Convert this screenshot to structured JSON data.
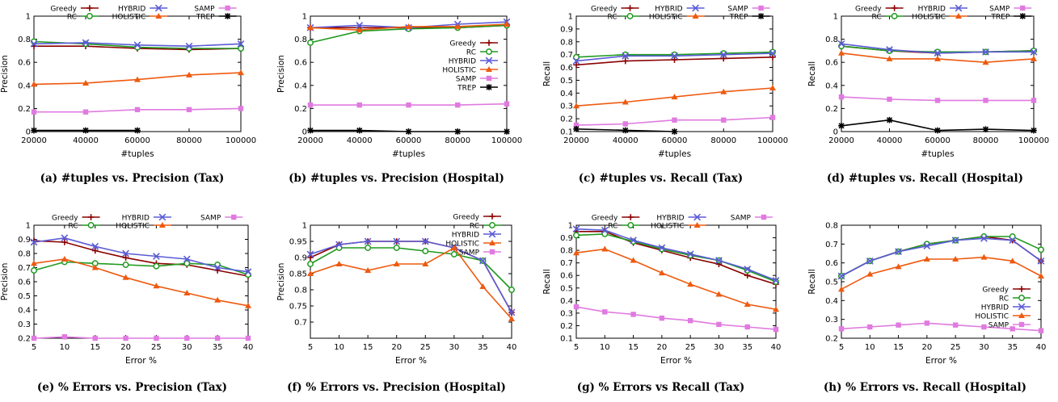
{
  "styles": {
    "Greedy": {
      "color": "#8b0000",
      "marker": "plus"
    },
    "RC": {
      "color": "#1f9a1f",
      "marker": "circle"
    },
    "HYBRID": {
      "color": "#5b5bd6",
      "marker": "x"
    },
    "HOLISTIC": {
      "color": "#ee5a0f",
      "marker": "triangle"
    },
    "SAMP": {
      "color": "#e07ae0",
      "marker": "square"
    },
    "TREP": {
      "color": "#000000",
      "marker": "star"
    }
  },
  "chart_data": [
    {
      "type": "line",
      "caption": "(a) #tuples vs. Precision (Tax)",
      "xlabel": "#tuples",
      "ylabel": "Precision",
      "xlim": [
        20000,
        100000
      ],
      "ylim": [
        0,
        1
      ],
      "xticks": [
        20000,
        40000,
        60000,
        80000,
        100000
      ],
      "yticks": [
        "0",
        "0.2",
        "0.4",
        "0.6",
        "0.8",
        "1"
      ],
      "legend": "top-inside-two-rows",
      "series": [
        {
          "name": "Greedy",
          "x": [
            20000,
            40000,
            60000,
            80000,
            100000
          ],
          "y": [
            0.74,
            0.74,
            0.72,
            0.71,
            0.72
          ]
        },
        {
          "name": "RC",
          "x": [
            20000,
            40000,
            60000,
            80000,
            100000
          ],
          "y": [
            0.78,
            0.76,
            0.73,
            0.72,
            0.72
          ]
        },
        {
          "name": "HYBRID",
          "x": [
            20000,
            40000,
            60000,
            80000,
            100000
          ],
          "y": [
            0.76,
            0.77,
            0.75,
            0.74,
            0.76
          ]
        },
        {
          "name": "HOLISTIC",
          "x": [
            20000,
            40000,
            60000,
            80000,
            100000
          ],
          "y": [
            0.41,
            0.42,
            0.45,
            0.49,
            0.51
          ]
        },
        {
          "name": "SAMP",
          "x": [
            20000,
            40000,
            60000,
            80000,
            100000
          ],
          "y": [
            0.17,
            0.17,
            0.19,
            0.19,
            0.2
          ]
        },
        {
          "name": "TREP",
          "x": [
            20000,
            40000,
            60000
          ],
          "y": [
            0.01,
            0.01,
            0.01
          ]
        }
      ]
    },
    {
      "type": "line",
      "caption": "(b) #tuples vs. Precision (Hospital)",
      "xlabel": "#tuples",
      "ylabel": "Precision",
      "xlim": [
        20000,
        100000
      ],
      "ylim": [
        0,
        1
      ],
      "xticks": [
        20000,
        40000,
        60000,
        80000,
        100000
      ],
      "yticks": [
        "0",
        "0.2",
        "0.4",
        "0.6",
        "0.8",
        "1"
      ],
      "legend": "right-vertical",
      "series": [
        {
          "name": "Greedy",
          "x": [
            20000,
            40000,
            60000,
            80000,
            100000
          ],
          "y": [
            0.9,
            0.9,
            0.9,
            0.9,
            0.92
          ]
        },
        {
          "name": "RC",
          "x": [
            20000,
            40000,
            60000,
            80000,
            100000
          ],
          "y": [
            0.77,
            0.87,
            0.89,
            0.9,
            0.92
          ]
        },
        {
          "name": "HYBRID",
          "x": [
            20000,
            40000,
            60000,
            80000,
            100000
          ],
          "y": [
            0.9,
            0.92,
            0.9,
            0.93,
            0.95
          ]
        },
        {
          "name": "HOLISTIC",
          "x": [
            20000,
            40000,
            60000,
            80000,
            100000
          ],
          "y": [
            0.9,
            0.88,
            0.91,
            0.91,
            0.93
          ]
        },
        {
          "name": "SAMP",
          "x": [
            20000,
            40000,
            60000,
            80000,
            100000
          ],
          "y": [
            0.23,
            0.23,
            0.23,
            0.23,
            0.24
          ]
        },
        {
          "name": "TREP",
          "x": [
            20000,
            40000,
            60000,
            80000,
            100000
          ],
          "y": [
            0.01,
            0.01,
            0.0,
            0.0,
            0.0
          ]
        }
      ]
    },
    {
      "type": "line",
      "caption": "(c) #tuples vs. Recall (Tax)",
      "xlabel": "#tuples",
      "ylabel": "Recall",
      "xlim": [
        20000,
        100000
      ],
      "ylim": [
        0.1,
        1
      ],
      "xticks": [
        20000,
        40000,
        60000,
        80000,
        100000
      ],
      "yticks": [
        "0.1",
        "0.2",
        "0.3",
        "0.4",
        "0.5",
        "0.6",
        "0.7",
        "0.8",
        "0.9",
        "1"
      ],
      "legend": "top-inside-two-rows",
      "series": [
        {
          "name": "Greedy",
          "x": [
            20000,
            40000,
            60000,
            80000,
            100000
          ],
          "y": [
            0.62,
            0.65,
            0.66,
            0.67,
            0.68
          ]
        },
        {
          "name": "RC",
          "x": [
            20000,
            40000,
            60000,
            80000,
            100000
          ],
          "y": [
            0.68,
            0.7,
            0.7,
            0.71,
            0.72
          ]
        },
        {
          "name": "HYBRID",
          "x": [
            20000,
            40000,
            60000,
            80000,
            100000
          ],
          "y": [
            0.65,
            0.69,
            0.69,
            0.7,
            0.71
          ]
        },
        {
          "name": "HOLISTIC",
          "x": [
            20000,
            40000,
            60000,
            80000,
            100000
          ],
          "y": [
            0.3,
            0.33,
            0.37,
            0.41,
            0.44
          ]
        },
        {
          "name": "SAMP",
          "x": [
            20000,
            40000,
            60000,
            80000,
            100000
          ],
          "y": [
            0.15,
            0.16,
            0.19,
            0.19,
            0.21
          ]
        },
        {
          "name": "TREP",
          "x": [
            20000,
            40000,
            60000
          ],
          "y": [
            0.12,
            0.11,
            0.1
          ]
        }
      ]
    },
    {
      "type": "line",
      "caption": "(d) #tuples vs. Recall (Hospital)",
      "xlabel": "#tuples",
      "ylabel": "Recall",
      "xlim": [
        20000,
        100000
      ],
      "ylim": [
        0,
        1
      ],
      "xticks": [
        20000,
        40000,
        60000,
        80000,
        100000
      ],
      "yticks": [
        "0",
        "0.2",
        "0.4",
        "0.6",
        "0.8",
        "1"
      ],
      "legend": "top-inside-two-rows",
      "series": [
        {
          "name": "Greedy",
          "x": [
            20000,
            40000,
            60000,
            80000,
            100000
          ],
          "y": [
            0.74,
            0.7,
            0.68,
            0.69,
            0.7
          ]
        },
        {
          "name": "RC",
          "x": [
            20000,
            40000,
            60000,
            80000,
            100000
          ],
          "y": [
            0.74,
            0.7,
            0.69,
            0.69,
            0.7
          ]
        },
        {
          "name": "HYBRID",
          "x": [
            20000,
            40000,
            60000,
            80000,
            100000
          ],
          "y": [
            0.76,
            0.71,
            0.68,
            0.69,
            0.69
          ]
        },
        {
          "name": "HOLISTIC",
          "x": [
            20000,
            40000,
            60000,
            80000,
            100000
          ],
          "y": [
            0.68,
            0.63,
            0.63,
            0.6,
            0.63
          ]
        },
        {
          "name": "SAMP",
          "x": [
            20000,
            40000,
            60000,
            80000,
            100000
          ],
          "y": [
            0.3,
            0.28,
            0.27,
            0.27,
            0.27
          ]
        },
        {
          "name": "TREP",
          "x": [
            20000,
            40000,
            60000,
            80000,
            100000
          ],
          "y": [
            0.05,
            0.1,
            0.01,
            0.02,
            0.01
          ]
        }
      ]
    },
    {
      "type": "line",
      "caption": "(e) % Errors vs. Precision (Tax)",
      "xlabel": "Error %",
      "ylabel": "Precision",
      "xlim": [
        5,
        40
      ],
      "ylim": [
        0.2,
        1
      ],
      "xticks": [
        5,
        10,
        15,
        20,
        25,
        30,
        35,
        40
      ],
      "yticks": [
        "0.2",
        "0.3",
        "0.4",
        "0.5",
        "0.6",
        "0.7",
        "0.8",
        "0.9",
        "1"
      ],
      "legend": "top-inside-two-rows",
      "series": [
        {
          "name": "Greedy",
          "x": [
            5,
            10,
            15,
            20,
            25,
            30,
            35,
            40
          ],
          "y": [
            0.89,
            0.88,
            0.82,
            0.77,
            0.73,
            0.72,
            0.68,
            0.64
          ]
        },
        {
          "name": "RC",
          "x": [
            5,
            10,
            15,
            20,
            25,
            30,
            35,
            40
          ],
          "y": [
            0.68,
            0.74,
            0.73,
            0.72,
            0.71,
            0.73,
            0.72,
            0.65
          ]
        },
        {
          "name": "HYBRID",
          "x": [
            5,
            10,
            15,
            20,
            25,
            30,
            35,
            40
          ],
          "y": [
            0.88,
            0.91,
            0.85,
            0.8,
            0.78,
            0.76,
            0.7,
            0.67
          ]
        },
        {
          "name": "HOLISTIC",
          "x": [
            5,
            10,
            15,
            20,
            25,
            30,
            35,
            40
          ],
          "y": [
            0.73,
            0.76,
            0.7,
            0.63,
            0.57,
            0.52,
            0.47,
            0.43
          ]
        },
        {
          "name": "SAMP",
          "x": [
            5,
            10,
            15,
            20,
            25,
            30,
            35,
            40
          ],
          "y": [
            0.2,
            0.21,
            0.2,
            0.2,
            0.2,
            0.2,
            0.2,
            0.2
          ]
        }
      ]
    },
    {
      "type": "line",
      "caption": "(f) % Errors vs. Precision (Hospital)",
      "xlabel": "Error %",
      "ylabel": "Precision",
      "xlim": [
        5,
        40
      ],
      "ylim": [
        0.65,
        1
      ],
      "xticks": [
        5,
        10,
        15,
        20,
        25,
        30,
        35,
        40
      ],
      "yticks": [
        "0.7",
        "0.75",
        "0.8",
        "0.85",
        "0.9",
        "0.95",
        "1"
      ],
      "legend": "top-right-vertical",
      "series": [
        {
          "name": "Greedy",
          "x": [
            5,
            10,
            15,
            20,
            25,
            30,
            35,
            40
          ],
          "y": [
            0.9,
            0.94,
            0.95,
            0.95,
            0.95,
            0.93,
            0.89,
            0.73
          ]
        },
        {
          "name": "RC",
          "x": [
            5,
            10,
            15,
            20,
            25,
            30,
            35,
            40
          ],
          "y": [
            0.88,
            0.93,
            0.93,
            0.93,
            0.92,
            0.91,
            0.89,
            0.8
          ]
        },
        {
          "name": "HYBRID",
          "x": [
            5,
            10,
            15,
            20,
            25,
            30,
            35,
            40
          ],
          "y": [
            0.91,
            0.94,
            0.95,
            0.95,
            0.95,
            0.93,
            0.89,
            0.73
          ]
        },
        {
          "name": "HOLISTIC",
          "x": [
            5,
            10,
            15,
            20,
            25,
            30,
            35,
            40
          ],
          "y": [
            0.85,
            0.88,
            0.86,
            0.88,
            0.88,
            0.93,
            0.81,
            0.71
          ]
        },
        {
          "name": "SAMP",
          "x": [],
          "y": []
        }
      ]
    },
    {
      "type": "line",
      "caption": "(g) % Errors vs Recall (Tax)",
      "xlabel": "Error %",
      "ylabel": "Recall",
      "xlim": [
        5,
        40
      ],
      "ylim": [
        0.1,
        1
      ],
      "xticks": [
        5,
        10,
        15,
        20,
        25,
        30,
        35,
        40
      ],
      "yticks": [
        "0.1",
        "0.2",
        "0.3",
        "0.4",
        "0.5",
        "0.6",
        "0.7",
        "0.8",
        "0.9",
        "1"
      ],
      "legend": "top-inside-two-rows",
      "series": [
        {
          "name": "Greedy",
          "x": [
            5,
            10,
            15,
            20,
            25,
            30,
            35,
            40
          ],
          "y": [
            0.95,
            0.95,
            0.86,
            0.8,
            0.74,
            0.69,
            0.6,
            0.53
          ]
        },
        {
          "name": "RC",
          "x": [
            5,
            10,
            15,
            20,
            25,
            30,
            35,
            40
          ],
          "y": [
            0.92,
            0.93,
            0.87,
            0.81,
            0.76,
            0.72,
            0.64,
            0.55
          ]
        },
        {
          "name": "HYBRID",
          "x": [
            5,
            10,
            15,
            20,
            25,
            30,
            35,
            40
          ],
          "y": [
            0.97,
            0.96,
            0.88,
            0.82,
            0.77,
            0.72,
            0.65,
            0.56
          ]
        },
        {
          "name": "HOLISTIC",
          "x": [
            5,
            10,
            15,
            20,
            25,
            30,
            35,
            40
          ],
          "y": [
            0.78,
            0.81,
            0.72,
            0.62,
            0.53,
            0.45,
            0.37,
            0.33
          ]
        },
        {
          "name": "SAMP",
          "x": [
            5,
            10,
            15,
            20,
            25,
            30,
            35,
            40
          ],
          "y": [
            0.35,
            0.31,
            0.29,
            0.26,
            0.24,
            0.21,
            0.19,
            0.17
          ]
        }
      ]
    },
    {
      "type": "line",
      "caption": "(h) % Errors vs. Recall (Hospital)",
      "xlabel": "Error %",
      "ylabel": "Recall",
      "xlim": [
        5,
        40
      ],
      "ylim": [
        0.2,
        0.8
      ],
      "xticks": [
        5,
        10,
        15,
        20,
        25,
        30,
        35,
        40
      ],
      "yticks": [
        "0.2",
        "0.3",
        "0.4",
        "0.5",
        "0.6",
        "0.7",
        "0.8"
      ],
      "legend": "bottom-right-vertical",
      "series": [
        {
          "name": "Greedy",
          "x": [
            5,
            10,
            15,
            20,
            25,
            30,
            35,
            40
          ],
          "y": [
            0.53,
            0.61,
            0.66,
            0.7,
            0.72,
            0.74,
            0.72,
            0.61
          ]
        },
        {
          "name": "RC",
          "x": [
            5,
            10,
            15,
            20,
            25,
            30,
            35,
            40
          ],
          "y": [
            0.53,
            0.61,
            0.66,
            0.7,
            0.72,
            0.74,
            0.74,
            0.67
          ]
        },
        {
          "name": "HYBRID",
          "x": [
            5,
            10,
            15,
            20,
            25,
            30,
            35,
            40
          ],
          "y": [
            0.53,
            0.61,
            0.66,
            0.69,
            0.72,
            0.73,
            0.72,
            0.61
          ]
        },
        {
          "name": "HOLISTIC",
          "x": [
            5,
            10,
            15,
            20,
            25,
            30,
            35,
            40
          ],
          "y": [
            0.46,
            0.54,
            0.58,
            0.62,
            0.62,
            0.63,
            0.61,
            0.53
          ]
        },
        {
          "name": "SAMP",
          "x": [
            5,
            10,
            15,
            20,
            25,
            30,
            35,
            40
          ],
          "y": [
            0.25,
            0.26,
            0.27,
            0.28,
            0.27,
            0.26,
            0.25,
            0.24
          ]
        }
      ]
    }
  ]
}
